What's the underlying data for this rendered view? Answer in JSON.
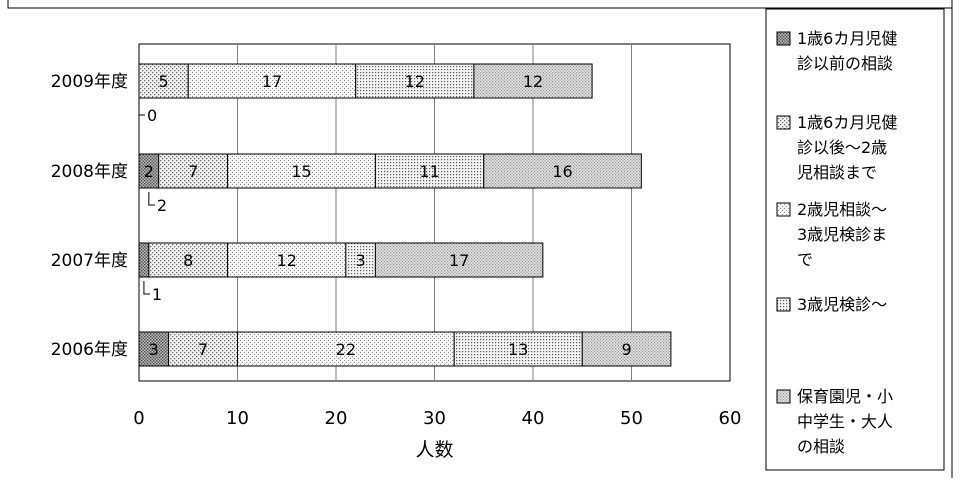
{
  "chart_data": {
    "type": "bar",
    "orientation": "horizontal",
    "stacked": true,
    "categories": [
      "2006年度",
      "2007年度",
      "2008年度",
      "2009年度"
    ],
    "series": [
      {
        "name": "1歳6カ月児健診以前の相談",
        "legend_lines": [
          "1歳6カ月児健",
          "診以前の相談"
        ],
        "values": [
          3,
          1,
          2,
          0
        ],
        "color": "#9a9a9a"
      },
      {
        "name": "1歳6カ月児健診以後～2歳児相談まで",
        "legend_lines": [
          "1歳6カ月児健",
          "診以後～2歳",
          "児相談まで"
        ],
        "values": [
          7,
          8,
          7,
          5
        ],
        "color": "#d6d6d6"
      },
      {
        "name": "2歳児相談～3歳児検診まで",
        "legend_lines": [
          "2歳児相談～",
          "3歳児検診ま",
          "で"
        ],
        "values": [
          22,
          12,
          15,
          17
        ],
        "color": "#e9e9e9"
      },
      {
        "name": "3歳児検診～",
        "legend_lines": [
          "3歳児検診～"
        ],
        "values": [
          13,
          3,
          11,
          12
        ],
        "color": "#dedede"
      },
      {
        "name": "保育園児・小中学生・大人の相談",
        "legend_lines": [
          "保育園児・小",
          "中学生・大人",
          "の相談"
        ],
        "values": [
          9,
          17,
          16,
          12
        ],
        "color": "#c4c4c4"
      }
    ],
    "xlabel": "人数",
    "ylabel": "",
    "xlim": [
      0,
      60
    ],
    "xticks": [
      0,
      10,
      20,
      30,
      40,
      50,
      60
    ],
    "grid": true,
    "legend_position": "right",
    "callouts": [
      {
        "category": "2009年度",
        "series": 0,
        "label": "0"
      },
      {
        "category": "2008年度",
        "series": 0,
        "label": "2"
      },
      {
        "category": "2007年度",
        "series": 0,
        "label": "1"
      }
    ]
  }
}
